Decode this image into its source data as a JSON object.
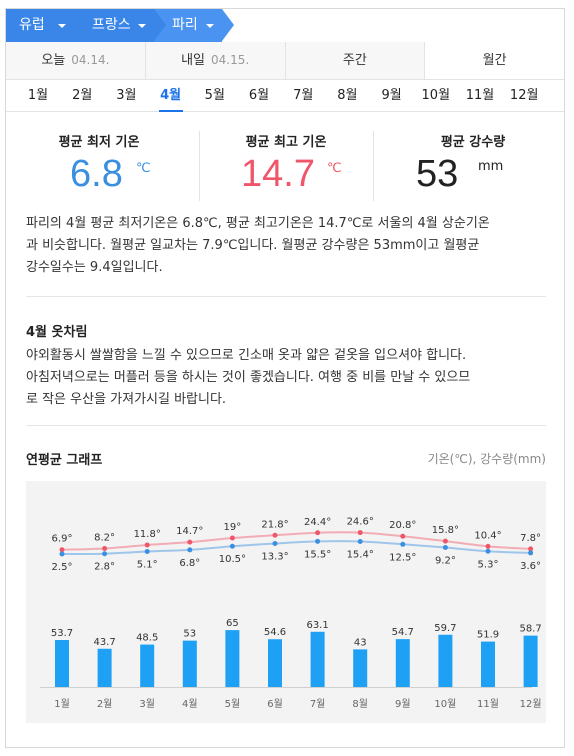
{
  "breadcrumb": [
    {
      "label": "유럽"
    },
    {
      "label": "프랑스"
    },
    {
      "label": "파리"
    }
  ],
  "period_tabs": [
    {
      "label": "오늘",
      "date": "04.14."
    },
    {
      "label": "내일",
      "date": "04.15."
    },
    {
      "label": "주간",
      "date": ""
    },
    {
      "label": "월간",
      "date": ""
    }
  ],
  "months": [
    "1월",
    "2월",
    "3월",
    "4월",
    "5월",
    "6월",
    "7월",
    "8월",
    "9월",
    "10월",
    "11월",
    "12월"
  ],
  "active_month_index": 3,
  "stats": {
    "min": {
      "label": "평균 최저 기온",
      "value": "6.8",
      "unit": "℃"
    },
    "max": {
      "label": "평균 최고 기온",
      "value": "14.7",
      "unit": "℃"
    },
    "rain": {
      "label": "평균 강수량",
      "value": "53",
      "unit": "mm"
    }
  },
  "summary_lines": [
    "파리의 4월 평균 최저기온은 6.8℃, 평균 최고기온은 14.7℃로 서울의 4월 상순기온",
    "과 비슷합니다. 월평균 일교차는 7.9℃입니다. 월평균 강수량은 53mm이고 월평균",
    "강수일수는 9.4일입니다."
  ],
  "clothing": {
    "title": "4월 옷차림",
    "lines": [
      "야외활동시 쌀쌀함을 느낄 수 있으므로 긴소매 옷과 얇은 겉옷을 입으셔야 합니다.",
      "아침저녁으로는 머플러 등을 하시는 것이 좋겠습니다. 여행 중 비를 만날 수 있으므",
      "로 작은 우산을 가져가시길 바랍니다."
    ]
  },
  "graph": {
    "title": "연평균 그래프",
    "legend": "기온(℃), 강수량(mm)"
  },
  "colors": {
    "breadcrumb": "#3a86e8",
    "breadcrumb_active": "#4a93f0",
    "accent": "#1a73e8",
    "min_temp": "#3a8fe0",
    "max_temp": "#f0566a",
    "bar": "#1ea0f5"
  },
  "chart_data": {
    "type": "line+bar",
    "categories": [
      "1월",
      "2월",
      "3월",
      "4월",
      "5월",
      "6월",
      "7월",
      "8월",
      "9월",
      "10월",
      "11월",
      "12월"
    ],
    "max_labels": [
      "6.9°",
      "8.2°",
      "11.8°",
      "14.7°",
      "19°",
      "21.8°",
      "24.4°",
      "24.6°",
      "20.8°",
      "15.8°",
      "10.4°",
      "7.8°"
    ],
    "min_labels": [
      "2.5°",
      "2.8°",
      "5.1°",
      "6.8°",
      "10.5°",
      "13.3°",
      "15.5°",
      "15.4°",
      "12.5°",
      "9.2°",
      "5.3°",
      "3.6°"
    ],
    "series": [
      {
        "values": [
          6.9,
          8.2,
          11.8,
          14.7,
          19,
          21.8,
          24.4,
          24.6,
          20.8,
          15.8,
          10.4,
          7.8
        ]
      },
      {
        "values": [
          2.5,
          2.8,
          5.1,
          6.8,
          10.5,
          13.3,
          15.5,
          15.4,
          12.5,
          9.2,
          5.3,
          3.6
        ]
      },
      {
        "values": [
          53.7,
          43.7,
          48.5,
          53,
          65,
          54.6,
          63.1,
          43,
          54.7,
          59.7,
          51.9,
          58.7
        ]
      }
    ]
  }
}
